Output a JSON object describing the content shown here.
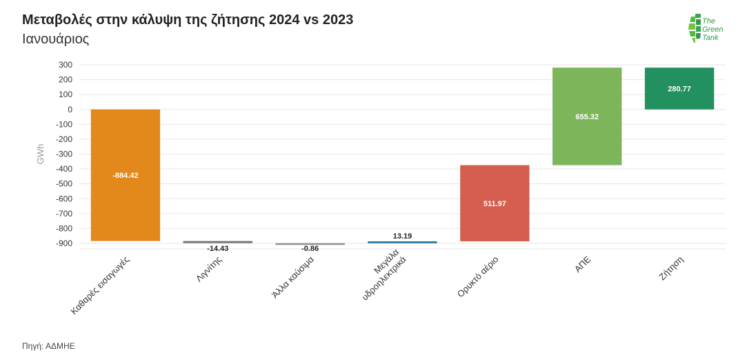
{
  "header": {
    "title": "Μεταβολές στην κάλυψη της ζήτησης 2024 vs 2023",
    "subtitle": "Ιανουάριος"
  },
  "footer": {
    "source": "Πηγή: ΑΔΜΗΕ"
  },
  "logo": {
    "line1": "The",
    "line2": "Green",
    "line3": "Tank",
    "color": "#2e9a4a"
  },
  "chart_data": {
    "type": "waterfall",
    "ylabel": "GWh",
    "ylim": [
      -900,
      300
    ],
    "yticks": [
      300,
      200,
      100,
      0,
      -100,
      -200,
      -300,
      -400,
      -500,
      -600,
      -700,
      -800,
      -900
    ],
    "grid": true,
    "categories": [
      "Καθαρές εισαγωγές",
      "Λιγνίτης",
      "Άλλα καύσιμα",
      "Μεγάλα υδροηλεκτρικά",
      "Ορυκτό αέριο",
      "ΑΠΕ",
      "Ζήτηση"
    ],
    "category_lines": [
      [
        "Καθαρές εισαγωγές"
      ],
      [
        "Λιγνίτης"
      ],
      [
        "Άλλα καύσιμα"
      ],
      [
        "Μεγάλα",
        "υδροηλεκτρικά"
      ],
      [
        "Ορυκτό αέριο"
      ],
      [
        "ΑΠΕ"
      ],
      [
        "Ζήτηση"
      ]
    ],
    "values": [
      -884.42,
      -14.43,
      -0.86,
      13.19,
      511.97,
      655.32,
      280.77
    ],
    "labels": [
      "-884.42",
      "-14.43",
      "-0.86",
      "13.19",
      "511.97",
      "655.32",
      "280.77"
    ],
    "is_total": [
      false,
      false,
      false,
      false,
      false,
      false,
      true
    ],
    "colors": [
      "#e3891c",
      "#7a7a7a",
      "#8f8f8f",
      "#2f7ea6",
      "#d45f4f",
      "#7db65a",
      "#23905f"
    ]
  }
}
